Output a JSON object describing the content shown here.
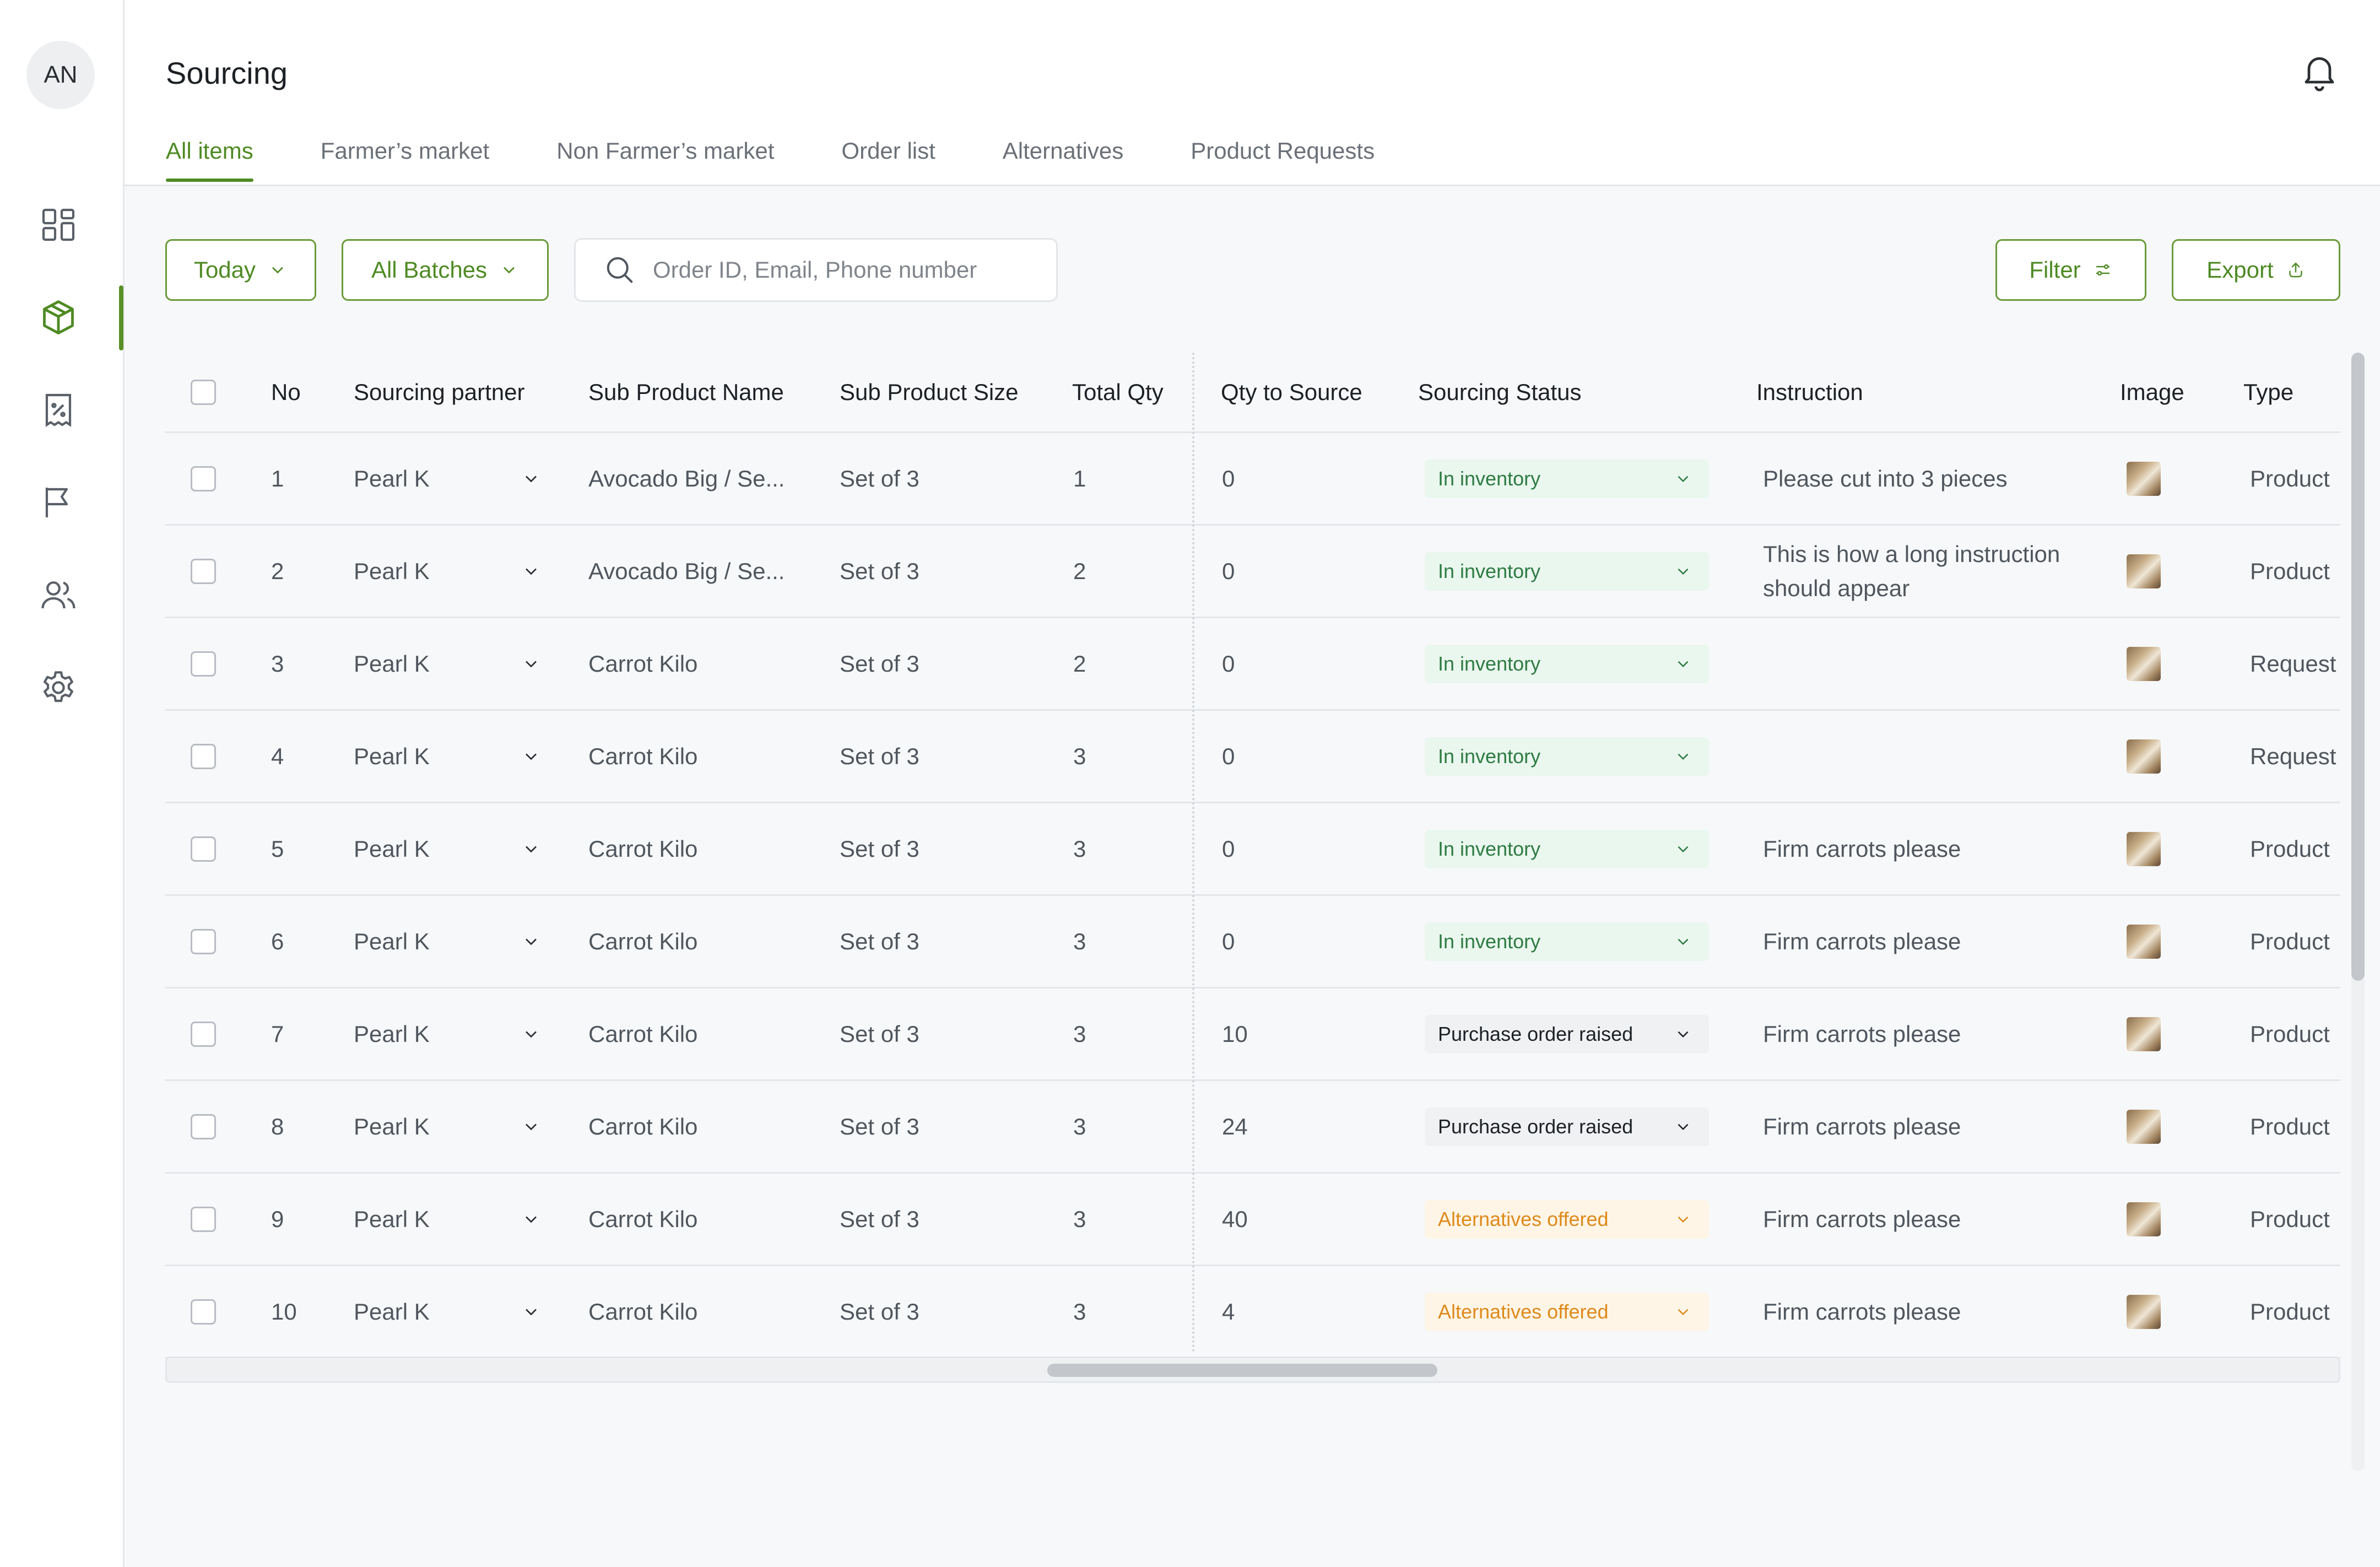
{
  "user": {
    "initials": "AN"
  },
  "sidebar": {
    "items": [
      {
        "icon": "dashboard-icon"
      },
      {
        "icon": "box-icon",
        "active": true
      },
      {
        "icon": "discount-receipt-icon"
      },
      {
        "icon": "flag-icon"
      },
      {
        "icon": "users-icon"
      },
      {
        "icon": "settings-icon"
      }
    ]
  },
  "header": {
    "title": "Sourcing",
    "tabs": [
      "All items",
      "Farmer’s market",
      "Non Farmer’s market",
      "Order list",
      "Alternatives",
      "Product Requests"
    ],
    "active_tab": "All items"
  },
  "toolbar": {
    "date_label": "Today",
    "batch_label": "All Batches",
    "search_placeholder": "Order ID, Email, Phone number",
    "filter_label": "Filter",
    "export_label": "Export"
  },
  "table": {
    "columns": [
      "No",
      "Sourcing partner",
      "Sub Product Name",
      "Sub Product Size",
      "Total Qty",
      "Qty to Source",
      "Sourcing Status",
      "Instruction",
      "Image",
      "Type"
    ],
    "rows": [
      {
        "no": "1",
        "partner": "Pearl K",
        "name": "Avocado Big / Se...",
        "size": "Set of 3",
        "total": "1",
        "to_source": "0",
        "status": "In inventory",
        "status_kind": "green",
        "instruction": "Please cut into 3 pieces",
        "type": "Product"
      },
      {
        "no": "2",
        "partner": "Pearl K",
        "name": "Avocado Big / Se...",
        "size": "Set of 3",
        "total": "2",
        "to_source": "0",
        "status": "In inventory",
        "status_kind": "green",
        "instruction": "This is how a long instruction should appear",
        "type": "Product"
      },
      {
        "no": "3",
        "partner": "Pearl K",
        "name": "Carrot Kilo",
        "size": "Set of 3",
        "total": "2",
        "to_source": "0",
        "status": "In inventory",
        "status_kind": "green",
        "instruction": "",
        "type": "Request"
      },
      {
        "no": "4",
        "partner": "Pearl K",
        "name": "Carrot Kilo",
        "size": "Set of 3",
        "total": "3",
        "to_source": "0",
        "status": "In inventory",
        "status_kind": "green",
        "instruction": "",
        "type": "Request"
      },
      {
        "no": "5",
        "partner": "Pearl K",
        "name": "Carrot Kilo",
        "size": "Set of 3",
        "total": "3",
        "to_source": "0",
        "status": "In inventory",
        "status_kind": "green",
        "instruction": "Firm carrots please",
        "type": "Product"
      },
      {
        "no": "6",
        "partner": "Pearl K",
        "name": "Carrot Kilo",
        "size": "Set of 3",
        "total": "3",
        "to_source": "0",
        "status": "In inventory",
        "status_kind": "green",
        "instruction": "Firm carrots please",
        "type": "Product"
      },
      {
        "no": "7",
        "partner": "Pearl K",
        "name": "Carrot Kilo",
        "size": "Set of 3",
        "total": "3",
        "to_source": "10",
        "status": "Purchase order raised",
        "status_kind": "grey",
        "instruction": "Firm carrots please",
        "type": "Product"
      },
      {
        "no": "8",
        "partner": "Pearl K",
        "name": "Carrot Kilo",
        "size": "Set of 3",
        "total": "3",
        "to_source": "24",
        "status": "Purchase order raised",
        "status_kind": "grey",
        "instruction": "Firm carrots please",
        "type": "Product"
      },
      {
        "no": "9",
        "partner": "Pearl K",
        "name": "Carrot Kilo",
        "size": "Set of 3",
        "total": "3",
        "to_source": "40",
        "status": "Alternatives offered",
        "status_kind": "orange",
        "instruction": "Firm carrots please",
        "type": "Product"
      },
      {
        "no": "10",
        "partner": "Pearl K",
        "name": "Carrot Kilo",
        "size": "Set of 3",
        "total": "3",
        "to_source": "4",
        "status": "Alternatives offered",
        "status_kind": "orange",
        "instruction": "Firm carrots please",
        "type": "Product"
      }
    ]
  },
  "colors": {
    "accent": "#4e8a23",
    "green_status": "#2e7b44",
    "orange_status": "#de8a1c"
  }
}
